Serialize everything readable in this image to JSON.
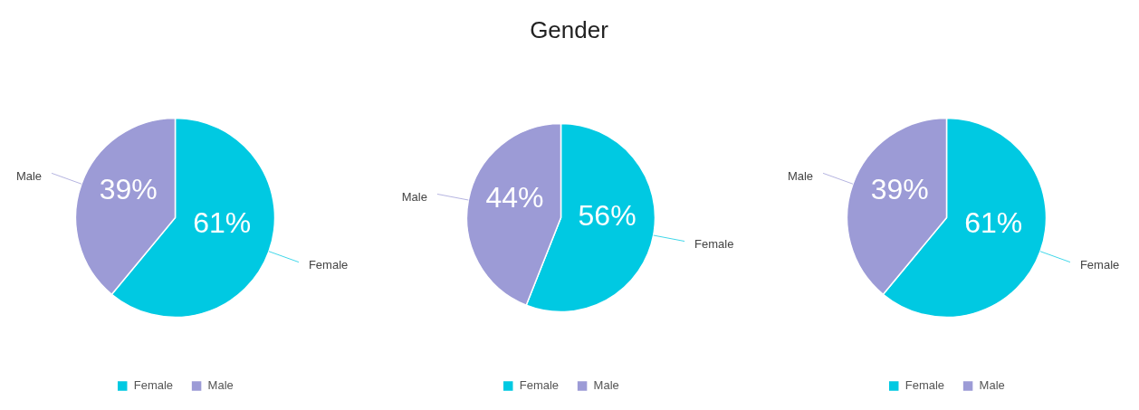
{
  "chart_data": [
    {
      "type": "pie",
      "categories": [
        "Female",
        "Male"
      ],
      "values": [
        61,
        39
      ],
      "colors": [
        "#00c9e2",
        "#9c9bd6"
      ],
      "value_labels": [
        "61%",
        "39%"
      ],
      "legend": "bottom"
    },
    {
      "type": "pie",
      "title": "Gender",
      "categories": [
        "Female",
        "Male"
      ],
      "values": [
        56,
        44
      ],
      "colors": [
        "#00c9e2",
        "#9c9bd6"
      ],
      "value_labels": [
        "56%",
        "44%"
      ],
      "legend": "bottom"
    },
    {
      "type": "pie",
      "categories": [
        "Female",
        "Male"
      ],
      "values": [
        61,
        39
      ],
      "colors": [
        "#00c9e2",
        "#9c9bd6"
      ],
      "value_labels": [
        "61%",
        "39%"
      ],
      "legend": "bottom"
    }
  ]
}
